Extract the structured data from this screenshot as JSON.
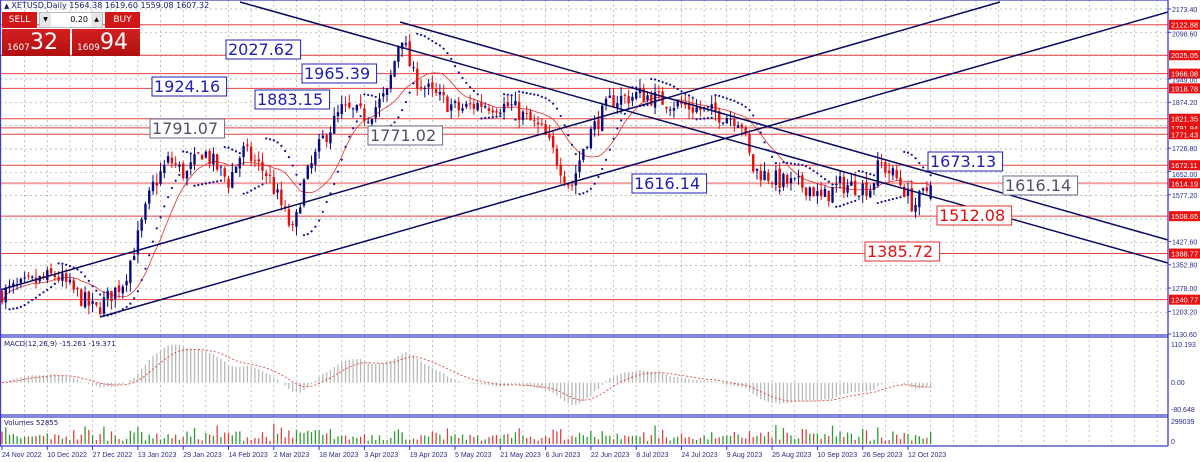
{
  "header": {
    "symbol_line": "XETUSD,Daily  1564.38 1619.60 1559.08 1607.32"
  },
  "trade_panel": {
    "sell_label": "SELL",
    "buy_label": "BUY",
    "lot_value": "0.20",
    "sell_price_prefix": "1607",
    "sell_price_big": "32",
    "buy_price_prefix": "1609",
    "buy_price_big": "94"
  },
  "chart_data": {
    "type": "candlestick",
    "symbol": "XETUSD",
    "timeframe": "Daily",
    "last_bar": {
      "open": 1564.38,
      "high": 1619.6,
      "low": 1559.08,
      "close": 1607.32
    },
    "ylim": [
      1130.6,
      2173.4
    ],
    "price_ticks": [
      "2173.40",
      "2098.60",
      "1949.00",
      "1874.20",
      "1726.80",
      "1652.00",
      "1577.20",
      "1427.60",
      "1352.80",
      "1278.00",
      "1203.20",
      "1130.60"
    ],
    "x_ticks": [
      "24 Nov 2022",
      "10 Dec 2022",
      "27 Dec 2022",
      "13 Jan 2023",
      "29 Jan 2023",
      "14 Feb 2023",
      "2 Mar 2023",
      "18 Mar 2023",
      "3 Apr 2023",
      "19 Apr 2023",
      "5 May 2023",
      "21 May 2023",
      "6 Jun 2023",
      "22 Jun 2023",
      "8 Jul 2023",
      "24 Jul 2023",
      "9 Aug 2023",
      "25 Aug 2023",
      "10 Sep 2023",
      "26 Sep 2023",
      "12 Oct 2023"
    ],
    "approx_close_path": [
      [
        "2022-11-24",
        1262
      ],
      [
        "2022-12-13",
        1320
      ],
      [
        "2022-12-27",
        1205
      ],
      [
        "2023-01-06",
        1300
      ],
      [
        "2023-01-11",
        1440
      ],
      [
        "2023-01-16",
        1600
      ],
      [
        "2023-01-22",
        1690
      ],
      [
        "2023-01-28",
        1640
      ],
      [
        "2023-02-03",
        1720
      ],
      [
        "2023-02-12",
        1620
      ],
      [
        "2023-02-17",
        1720
      ],
      [
        "2023-02-26",
        1640
      ],
      [
        "2023-03-07",
        1450
      ],
      [
        "2023-03-10",
        1600
      ],
      [
        "2023-03-17",
        1750
      ],
      [
        "2023-03-24",
        1850
      ],
      [
        "2023-04-02",
        1830
      ],
      [
        "2023-04-09",
        1900
      ],
      [
        "2023-04-14",
        2100
      ],
      [
        "2023-04-18",
        1960
      ],
      [
        "2023-04-25",
        1900
      ],
      [
        "2023-05-04",
        1850
      ],
      [
        "2023-05-12",
        1870
      ],
      [
        "2023-05-23",
        1860
      ],
      [
        "2023-06-03",
        1780
      ],
      [
        "2023-06-13",
        1600
      ],
      [
        "2023-06-18",
        1750
      ],
      [
        "2023-06-27",
        1880
      ],
      [
        "2023-07-08",
        1900
      ],
      [
        "2023-07-15",
        1880
      ],
      [
        "2023-07-29",
        1850
      ],
      [
        "2023-08-12",
        1820
      ],
      [
        "2023-08-16",
        1660
      ],
      [
        "2023-08-26",
        1620
      ],
      [
        "2023-09-06",
        1600
      ],
      [
        "2023-09-09",
        1560
      ],
      [
        "2023-09-16",
        1610
      ],
      [
        "2023-09-27",
        1600
      ],
      [
        "2023-09-30",
        1680
      ],
      [
        "2023-10-07",
        1620
      ],
      [
        "2023-10-12",
        1540
      ],
      [
        "2023-10-18",
        1607
      ]
    ],
    "horizontal_levels": [
      "2122.88",
      "2025.05",
      "1966.08",
      "1918.78",
      "1821.35",
      "1791.84",
      "1771.43",
      "1672.11",
      "1614.19",
      "1508.65",
      "1388.77",
      "1240.77"
    ],
    "annotations": [
      {
        "text": "2027.62",
        "style": "blue"
      },
      {
        "text": "1924.16",
        "style": "blue"
      },
      {
        "text": "1965.39",
        "style": "blue"
      },
      {
        "text": "1883.15",
        "style": "blue"
      },
      {
        "text": "1791.07",
        "style": "gray"
      },
      {
        "text": "1771.02",
        "style": "gray"
      },
      {
        "text": "1616.14",
        "style": "blue"
      },
      {
        "text": "1673.13",
        "style": "blue"
      },
      {
        "text": "1616.14",
        "style": "gray"
      },
      {
        "text": "1512.08",
        "style": "red"
      },
      {
        "text": "1385.72",
        "style": "red"
      }
    ],
    "indicators": {
      "moving_average": {
        "color": "#e03030"
      },
      "parabolic_sar": {
        "color": "#1010a0"
      },
      "macd": {
        "label": "MACD(12,26,9) -15.261 -19.371",
        "ylim": [
          -80.648,
          110.193
        ],
        "ticks": [
          "110.193",
          "0.00",
          "-80.648"
        ]
      },
      "volumes": {
        "label": "Volumes 52855",
        "ylim": [
          0,
          299039
        ],
        "ticks": [
          "299039",
          "0"
        ]
      }
    },
    "colors": {
      "bull": "#0a0a80",
      "bear": "#e01010",
      "level": "#e84040",
      "trendline": "#0a0a60",
      "axis": "#3c3cc8",
      "vol_up": "#2e9a2e",
      "vol_down": "#e04040"
    }
  }
}
